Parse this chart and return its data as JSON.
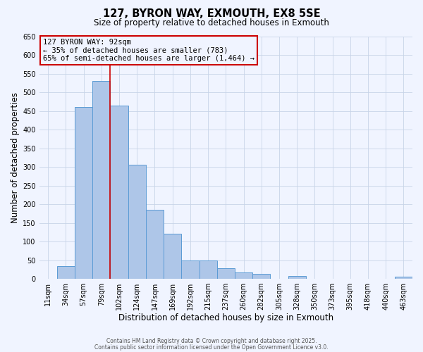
{
  "title": "127, BYRON WAY, EXMOUTH, EX8 5SE",
  "subtitle": "Size of property relative to detached houses in Exmouth",
  "xlabel": "Distribution of detached houses by size in Exmouth",
  "ylabel": "Number of detached properties",
  "bar_labels": [
    "11sqm",
    "34sqm",
    "57sqm",
    "79sqm",
    "102sqm",
    "124sqm",
    "147sqm",
    "169sqm",
    "192sqm",
    "215sqm",
    "237sqm",
    "260sqm",
    "282sqm",
    "305sqm",
    "328sqm",
    "350sqm",
    "373sqm",
    "395sqm",
    "418sqm",
    "440sqm",
    "463sqm"
  ],
  "bar_values": [
    0,
    35,
    460,
    530,
    465,
    305,
    185,
    120,
    50,
    50,
    28,
    18,
    13,
    0,
    8,
    0,
    0,
    0,
    0,
    0,
    5
  ],
  "bar_color": "#aec6e8",
  "bar_edge_color": "#5b9bd5",
  "ylim": [
    0,
    650
  ],
  "yticks": [
    0,
    50,
    100,
    150,
    200,
    250,
    300,
    350,
    400,
    450,
    500,
    550,
    600,
    650
  ],
  "vline_color": "#cc0000",
  "annotation_title": "127 BYRON WAY: 92sqm",
  "annotation_line1": "← 35% of detached houses are smaller (783)",
  "annotation_line2": "65% of semi-detached houses are larger (1,464) →",
  "annotation_box_color": "#cc0000",
  "background_color": "#f0f4ff",
  "grid_color": "#c8d4e8",
  "footer1": "Contains HM Land Registry data © Crown copyright and database right 2025.",
  "footer2": "Contains public sector information licensed under the Open Government Licence v3.0."
}
